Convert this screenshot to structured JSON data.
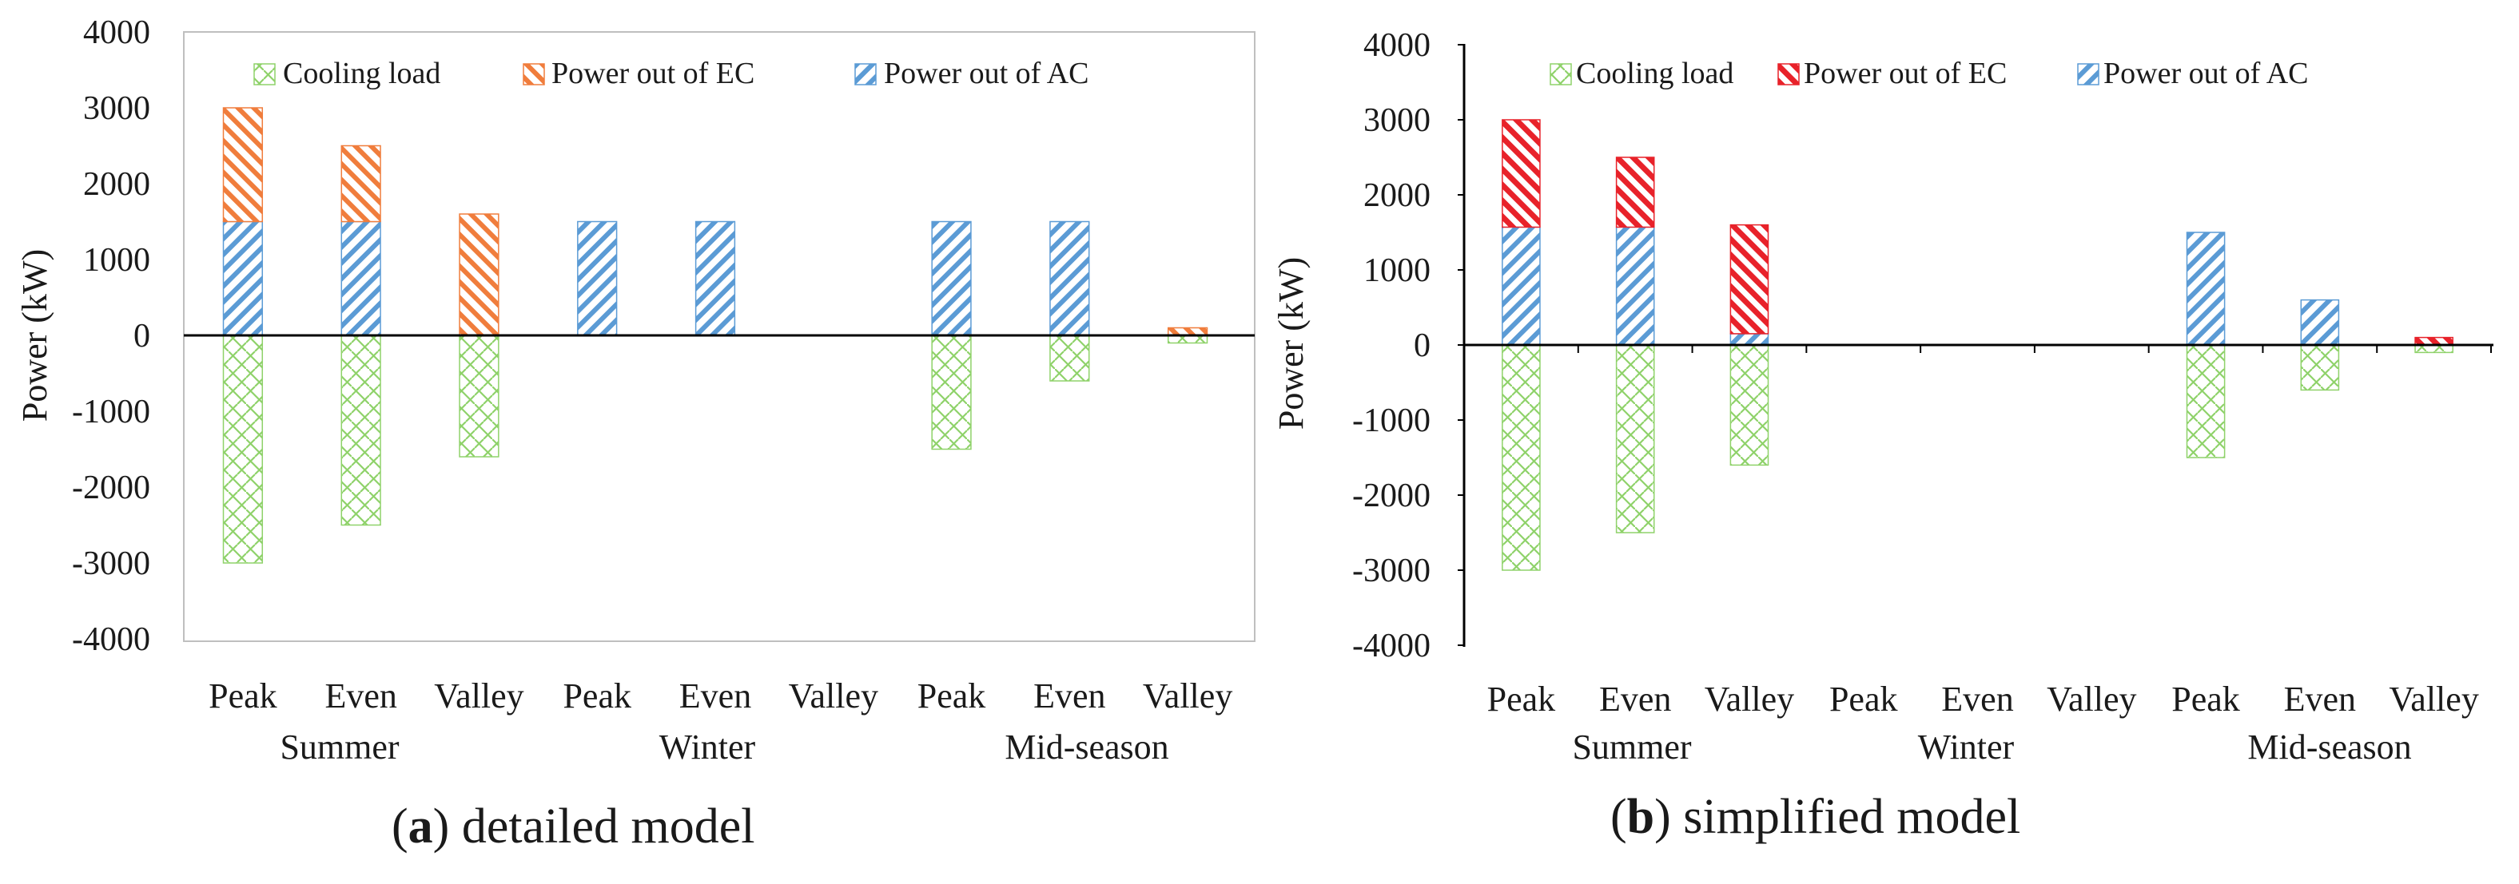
{
  "colors": {
    "cooling": "#8fd26a",
    "ec_a": "#f07d3c",
    "ec_b": "#e8222a",
    "ac": "#5b9bd5",
    "axis": "#000000"
  },
  "chart_data": [
    {
      "panel": "a",
      "type": "bar",
      "stacked": true,
      "caption_letter": "a",
      "caption_text": "detailed model",
      "ylabel": "Power (kW)",
      "ylim": [
        -4000,
        4000
      ],
      "yticks": [
        4000,
        3000,
        2000,
        1000,
        0,
        -1000,
        -2000,
        -3000,
        -4000
      ],
      "categories": [
        "Peak",
        "Even",
        "Valley",
        "Peak",
        "Even",
        "Valley",
        "Peak",
        "Even",
        "Valley"
      ],
      "groups": [
        "Summer",
        "Winter",
        "Mid-season"
      ],
      "legend": [
        "Cooling load",
        "Power out of EC",
        "Power out of AC"
      ],
      "series": [
        {
          "name": "Cooling load",
          "values": [
            -3000,
            -2500,
            -1600,
            0,
            0,
            0,
            -1500,
            -600,
            -100
          ]
        },
        {
          "name": "Power out of AC",
          "values": [
            1500,
            1500,
            0,
            1500,
            1500,
            0,
            1500,
            1500,
            0
          ]
        },
        {
          "name": "Power out of EC",
          "values": [
            1500,
            1000,
            1600,
            0,
            0,
            0,
            0,
            0,
            100
          ]
        }
      ],
      "grid": false,
      "legend_position": "top"
    },
    {
      "panel": "b",
      "type": "bar",
      "stacked": true,
      "caption_letter": "b",
      "caption_text": "simplified model",
      "ylabel": "Power (kW)",
      "ylim": [
        -4000,
        4000
      ],
      "yticks": [
        4000,
        3000,
        2000,
        1000,
        0,
        -1000,
        -2000,
        -3000,
        -4000
      ],
      "categories": [
        "Peak",
        "Even",
        "Valley",
        "Peak",
        "Even",
        "Valley",
        "Peak",
        "Even",
        "Valley"
      ],
      "groups": [
        "Summer",
        "Winter",
        "Mid-season"
      ],
      "legend": [
        "Cooling load",
        "Power out of EC",
        "Power out of AC"
      ],
      "series": [
        {
          "name": "Cooling load",
          "values": [
            -3000,
            -2500,
            -1600,
            0,
            0,
            0,
            -1500,
            -600,
            -100
          ]
        },
        {
          "name": "Power out of AC",
          "values": [
            1570,
            1570,
            150,
            0,
            0,
            0,
            1500,
            600,
            0
          ]
        },
        {
          "name": "Power out of EC",
          "values": [
            1430,
            930,
            1450,
            0,
            0,
            0,
            0,
            0,
            100
          ]
        }
      ],
      "grid": false,
      "legend_position": "top"
    }
  ]
}
